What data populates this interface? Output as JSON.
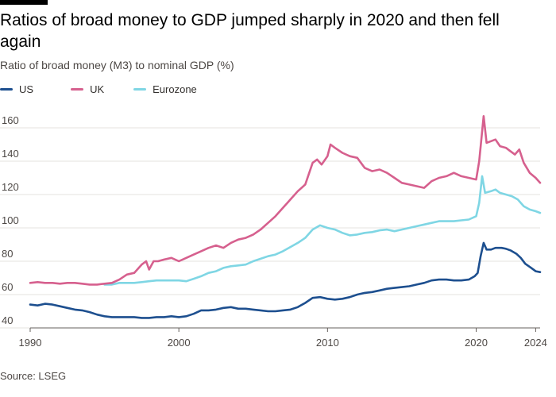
{
  "header": {
    "title": "Ratios of broad money to GDP jumped sharply in 2020 and then fell again",
    "subtitle": "Ratio of broad money (M3) to nominal GDP (%)"
  },
  "footer": {
    "source": "Source: LSEG"
  },
  "colors": {
    "us": "#1d4f8f",
    "uk": "#d6608e",
    "eurozone": "#7fd6e4",
    "grid": "#e6e3df",
    "axis": "#66605c"
  },
  "chart_data": {
    "type": "line",
    "title": "Ratios of broad money to GDP jumped sharply in 2020 and then fell again",
    "ylabel": "Ratio of broad money (M3) to nominal GDP (%)",
    "xlim": [
      1990,
      2024.3
    ],
    "ylim": [
      40,
      170
    ],
    "yticks": [
      40,
      60,
      80,
      100,
      120,
      140,
      160
    ],
    "xticks": [
      {
        "value": 1990,
        "label": "1990"
      },
      {
        "value": 2000,
        "label": "2000"
      },
      {
        "value": 2010,
        "label": "2010"
      },
      {
        "value": 2020,
        "label": "2020"
      },
      {
        "value": 2024,
        "label": "2024"
      }
    ],
    "grid": "horizontal",
    "legend_position": "top-left",
    "series": [
      {
        "name": "US",
        "key": "us",
        "points": [
          [
            1990,
            54
          ],
          [
            1990.5,
            53.5
          ],
          [
            1991,
            54.5
          ],
          [
            1991.5,
            54
          ],
          [
            1992,
            53
          ],
          [
            1992.5,
            52
          ],
          [
            1993,
            51
          ],
          [
            1993.5,
            50.5
          ],
          [
            1994,
            49.5
          ],
          [
            1994.5,
            48
          ],
          [
            1995,
            47
          ],
          [
            1995.5,
            46.5
          ],
          [
            1996,
            46.5
          ],
          [
            1996.5,
            46.5
          ],
          [
            1997,
            46.5
          ],
          [
            1997.5,
            46
          ],
          [
            1998,
            46
          ],
          [
            1998.5,
            46.5
          ],
          [
            1999,
            46.5
          ],
          [
            1999.5,
            47
          ],
          [
            2000,
            46.5
          ],
          [
            2000.5,
            47
          ],
          [
            2001,
            48.5
          ],
          [
            2001.5,
            50.5
          ],
          [
            2002,
            50.5
          ],
          [
            2002.5,
            51
          ],
          [
            2003,
            52
          ],
          [
            2003.5,
            52.5
          ],
          [
            2004,
            51.5
          ],
          [
            2004.5,
            51.5
          ],
          [
            2005,
            51
          ],
          [
            2005.5,
            50.5
          ],
          [
            2006,
            50
          ],
          [
            2006.5,
            50
          ],
          [
            2007,
            50.5
          ],
          [
            2007.5,
            51
          ],
          [
            2008,
            52.5
          ],
          [
            2008.5,
            55
          ],
          [
            2009,
            58
          ],
          [
            2009.5,
            58.5
          ],
          [
            2010,
            57.5
          ],
          [
            2010.5,
            57
          ],
          [
            2011,
            57.5
          ],
          [
            2011.5,
            58.5
          ],
          [
            2012,
            60
          ],
          [
            2012.5,
            61
          ],
          [
            2013,
            61.5
          ],
          [
            2013.5,
            62.5
          ],
          [
            2014,
            63.5
          ],
          [
            2014.5,
            64
          ],
          [
            2015,
            64.5
          ],
          [
            2015.5,
            65
          ],
          [
            2016,
            66
          ],
          [
            2016.5,
            67
          ],
          [
            2017,
            68.5
          ],
          [
            2017.5,
            69
          ],
          [
            2018,
            69
          ],
          [
            2018.5,
            68.5
          ],
          [
            2019,
            68.5
          ],
          [
            2019.5,
            69
          ],
          [
            2019.9,
            71
          ],
          [
            2020.1,
            73
          ],
          [
            2020.3,
            83
          ],
          [
            2020.5,
            91
          ],
          [
            2020.7,
            87
          ],
          [
            2021,
            87
          ],
          [
            2021.3,
            88
          ],
          [
            2021.7,
            88
          ],
          [
            2022,
            87.5
          ],
          [
            2022.3,
            86.5
          ],
          [
            2022.7,
            84.5
          ],
          [
            2023,
            82
          ],
          [
            2023.3,
            78.5
          ],
          [
            2023.7,
            76
          ],
          [
            2024,
            74
          ],
          [
            2024.3,
            73.5
          ]
        ]
      },
      {
        "name": "UK",
        "key": "uk",
        "points": [
          [
            1990,
            67
          ],
          [
            1990.5,
            67.5
          ],
          [
            1991,
            67
          ],
          [
            1991.5,
            67
          ],
          [
            1992,
            66.5
          ],
          [
            1992.5,
            67
          ],
          [
            1993,
            67
          ],
          [
            1993.5,
            66.5
          ],
          [
            1994,
            66
          ],
          [
            1994.5,
            66
          ],
          [
            1995,
            66.5
          ],
          [
            1995.5,
            67
          ],
          [
            1996,
            69
          ],
          [
            1996.5,
            72
          ],
          [
            1997,
            73
          ],
          [
            1997.5,
            78
          ],
          [
            1997.8,
            80
          ],
          [
            1998,
            75
          ],
          [
            1998.3,
            80
          ],
          [
            1998.6,
            80
          ],
          [
            1999,
            81
          ],
          [
            1999.5,
            82
          ],
          [
            2000,
            80
          ],
          [
            2000.5,
            82
          ],
          [
            2001,
            84
          ],
          [
            2001.5,
            86
          ],
          [
            2002,
            88
          ],
          [
            2002.5,
            89.5
          ],
          [
            2003,
            88
          ],
          [
            2003.5,
            91
          ],
          [
            2004,
            93
          ],
          [
            2004.5,
            94
          ],
          [
            2005,
            96
          ],
          [
            2005.5,
            99
          ],
          [
            2006,
            103
          ],
          [
            2006.5,
            107
          ],
          [
            2007,
            112
          ],
          [
            2007.5,
            117
          ],
          [
            2008,
            122
          ],
          [
            2008.5,
            126
          ],
          [
            2009,
            139
          ],
          [
            2009.3,
            141
          ],
          [
            2009.6,
            138
          ],
          [
            2010,
            143
          ],
          [
            2010.2,
            150
          ],
          [
            2010.5,
            148
          ],
          [
            2011,
            145
          ],
          [
            2011.5,
            143
          ],
          [
            2012,
            142
          ],
          [
            2012.5,
            136
          ],
          [
            2013,
            134
          ],
          [
            2013.5,
            135
          ],
          [
            2014,
            133
          ],
          [
            2014.5,
            130
          ],
          [
            2015,
            127
          ],
          [
            2015.5,
            126
          ],
          [
            2016,
            125
          ],
          [
            2016.5,
            124
          ],
          [
            2017,
            128
          ],
          [
            2017.5,
            130
          ],
          [
            2018,
            131
          ],
          [
            2018.5,
            133
          ],
          [
            2019,
            131
          ],
          [
            2019.5,
            130
          ],
          [
            2020,
            129
          ],
          [
            2020.2,
            140
          ],
          [
            2020.5,
            167
          ],
          [
            2020.7,
            151
          ],
          [
            2021,
            152
          ],
          [
            2021.3,
            153
          ],
          [
            2021.6,
            149
          ],
          [
            2022,
            148
          ],
          [
            2022.3,
            146
          ],
          [
            2022.6,
            144
          ],
          [
            2022.9,
            147
          ],
          [
            2023.2,
            139
          ],
          [
            2023.6,
            133
          ],
          [
            2024,
            130
          ],
          [
            2024.3,
            127
          ]
        ]
      },
      {
        "name": "Eurozone",
        "key": "eurozone",
        "points": [
          [
            1995,
            66
          ],
          [
            1995.5,
            66
          ],
          [
            1996,
            67
          ],
          [
            1996.5,
            67
          ],
          [
            1997,
            67
          ],
          [
            1997.5,
            67.5
          ],
          [
            1998,
            68
          ],
          [
            1998.5,
            68.5
          ],
          [
            1999,
            68.5
          ],
          [
            1999.5,
            68.5
          ],
          [
            2000,
            68.5
          ],
          [
            2000.5,
            68
          ],
          [
            2001,
            69.5
          ],
          [
            2001.5,
            71
          ],
          [
            2002,
            73
          ],
          [
            2002.5,
            74
          ],
          [
            2003,
            76
          ],
          [
            2003.5,
            77
          ],
          [
            2004,
            77.5
          ],
          [
            2004.5,
            78
          ],
          [
            2005,
            80
          ],
          [
            2005.5,
            81.5
          ],
          [
            2006,
            83
          ],
          [
            2006.5,
            84
          ],
          [
            2007,
            86
          ],
          [
            2007.5,
            88.5
          ],
          [
            2008,
            91
          ],
          [
            2008.5,
            94
          ],
          [
            2009,
            99
          ],
          [
            2009.5,
            101.5
          ],
          [
            2010,
            100
          ],
          [
            2010.5,
            99
          ],
          [
            2011,
            97
          ],
          [
            2011.5,
            95.5
          ],
          [
            2012,
            96
          ],
          [
            2012.5,
            97
          ],
          [
            2013,
            97.5
          ],
          [
            2013.5,
            98.5
          ],
          [
            2014,
            99
          ],
          [
            2014.5,
            98
          ],
          [
            2015,
            99
          ],
          [
            2015.5,
            100
          ],
          [
            2016,
            101
          ],
          [
            2016.5,
            102
          ],
          [
            2017,
            103
          ],
          [
            2017.5,
            104
          ],
          [
            2018,
            104
          ],
          [
            2018.5,
            104
          ],
          [
            2019,
            104.5
          ],
          [
            2019.5,
            105
          ],
          [
            2020,
            107
          ],
          [
            2020.2,
            115
          ],
          [
            2020.4,
            131
          ],
          [
            2020.6,
            121
          ],
          [
            2021,
            122
          ],
          [
            2021.3,
            123
          ],
          [
            2021.6,
            121
          ],
          [
            2022,
            120
          ],
          [
            2022.4,
            119
          ],
          [
            2022.8,
            117
          ],
          [
            2023.2,
            113
          ],
          [
            2023.6,
            111
          ],
          [
            2024,
            110
          ],
          [
            2024.3,
            109
          ]
        ]
      }
    ]
  }
}
